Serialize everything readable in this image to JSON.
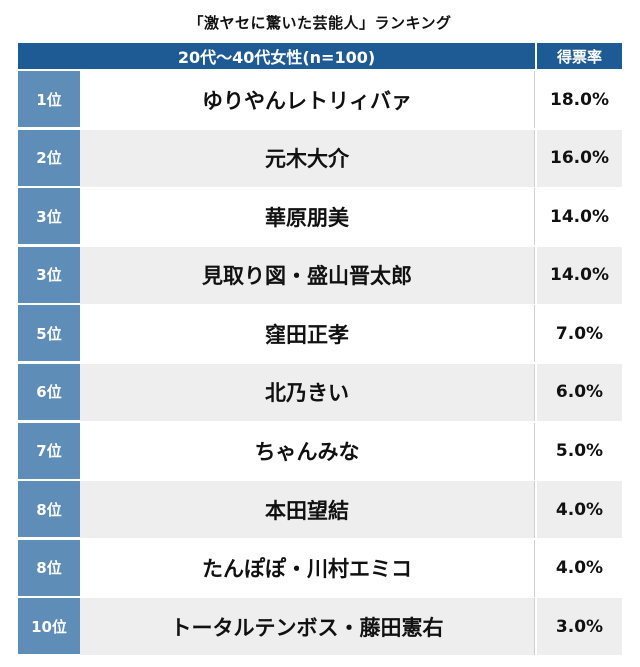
{
  "title": "「激ヤセに驚いた芸能人」ランキング",
  "header": {
    "group": "20代〜40代女性(n=100)",
    "percent_label": "得票率"
  },
  "colors": {
    "header_bg": "#1e5b95",
    "rank_bg": "#5e8db7",
    "row_alt_bg": "#eeeeee"
  },
  "rows": [
    {
      "rank": "1位",
      "name": "ゆりやんレトリィバァ",
      "percent": "18.0%"
    },
    {
      "rank": "2位",
      "name": "元木大介",
      "percent": "16.0%"
    },
    {
      "rank": "3位",
      "name": "華原朋美",
      "percent": "14.0%"
    },
    {
      "rank": "3位",
      "name": "見取り図・盛山晋太郎",
      "percent": "14.0%"
    },
    {
      "rank": "5位",
      "name": "窪田正孝",
      "percent": "7.0%"
    },
    {
      "rank": "6位",
      "name": "北乃きい",
      "percent": "6.0%"
    },
    {
      "rank": "7位",
      "name": "ちゃんみな",
      "percent": "5.0%"
    },
    {
      "rank": "8位",
      "name": "本田望結",
      "percent": "4.0%"
    },
    {
      "rank": "8位",
      "name": "たんぽぽ・川村エミコ",
      "percent": "4.0%"
    },
    {
      "rank": "10位",
      "name": "トータルテンボス・藤田憲右",
      "percent": "3.0%"
    }
  ]
}
